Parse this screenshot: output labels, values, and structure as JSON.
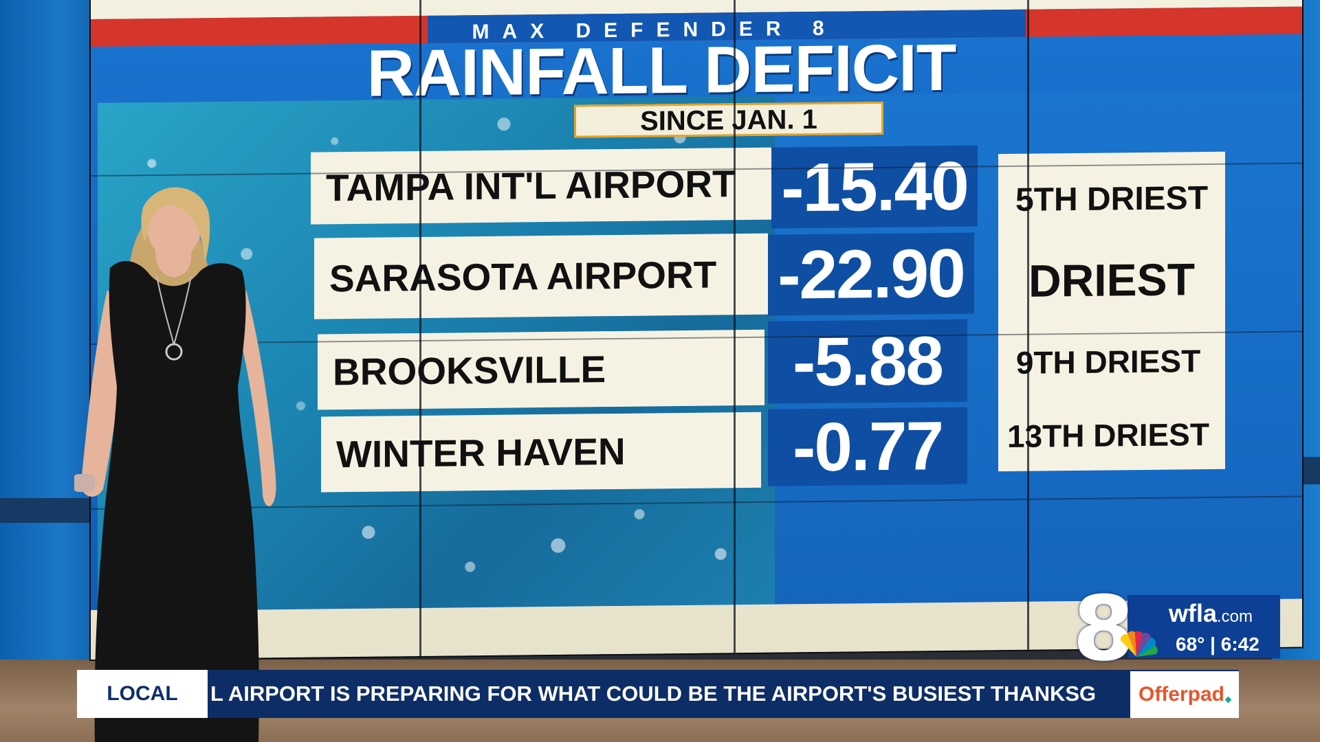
{
  "graphic": {
    "kicker": "MAX DEFENDER 8",
    "title": "RAINFALL DEFICIT",
    "subtitle": "SINCE JAN. 1",
    "rows": [
      {
        "location": "TAMPA INT'L AIRPORT",
        "value": "-15.40",
        "rank": "5TH DRIEST"
      },
      {
        "location": "SARASOTA AIRPORT",
        "value": "-22.90",
        "rank": "DRIEST"
      },
      {
        "location": "BROOKSVILLE",
        "value": "-5.88",
        "rank": "9TH DRIEST"
      },
      {
        "location": "WINTER HAVEN",
        "value": "-0.77",
        "rank": "13TH DRIEST"
      }
    ]
  },
  "lower_third": {
    "tag": "LOCAL",
    "ticker": "L AIRPORT IS PREPARING FOR WHAT COULD BE THE AIRPORT'S BUSIEST THANKSG",
    "sponsor": "Offerpad"
  },
  "station_bug": {
    "channel": "8",
    "site_name": "wfla",
    "site_suffix": ".com",
    "temperature": "68°",
    "time": "6:42"
  },
  "colors": {
    "board_blue": "#1468c2",
    "value_blue": "#0f4fa3",
    "accent_red": "#d6352b",
    "card_cream": "#f6f2e3",
    "ticker_navy": "#0d2d66",
    "sponsor_orange": "#e8552a"
  },
  "icons": [
    "nbc-peacock-icon",
    "channel-8-logo"
  ]
}
